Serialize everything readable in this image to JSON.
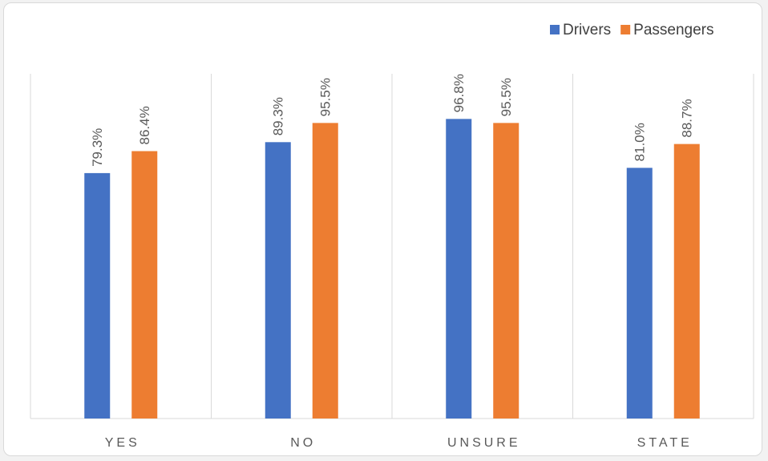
{
  "chart_data": {
    "type": "bar",
    "categories": [
      "YES",
      "NO",
      "UNSURE",
      "STATE"
    ],
    "series": [
      {
        "name": "Drivers",
        "color": "#4472c4",
        "values": [
          79.3,
          89.3,
          96.8,
          81.0
        ],
        "labels": [
          "79.3%",
          "89.3%",
          "96.8%",
          "81.0%"
        ]
      },
      {
        "name": "Passengers",
        "color": "#ed7d31",
        "values": [
          86.4,
          95.5,
          95.5,
          88.7
        ],
        "labels": [
          "86.4%",
          "95.5%",
          "95.5%",
          "88.7%"
        ]
      }
    ],
    "ylim": [
      0,
      100
    ],
    "legend_position": "top-right",
    "grid": "vertical category separators"
  }
}
